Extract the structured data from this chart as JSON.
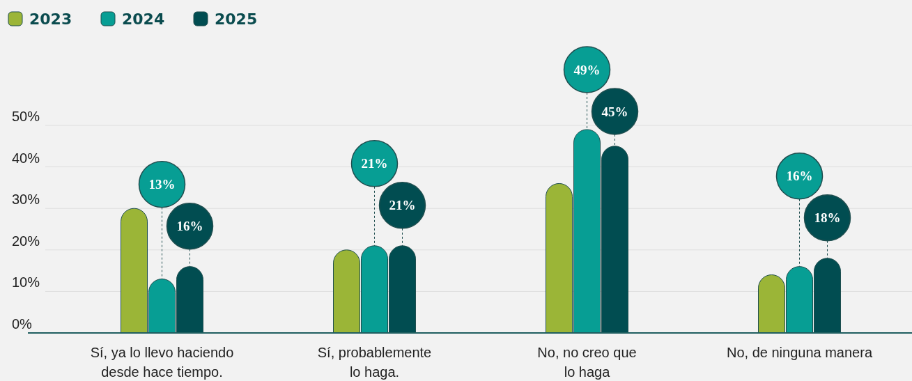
{
  "chart_data": {
    "type": "bar",
    "categories": [
      "Sí, ya lo llevo haciendo\ndesde hace tiempo.",
      "Sí, probablemente\nlo haga.",
      "No, no creo que\nlo haga",
      "No, de ninguna manera"
    ],
    "series": [
      {
        "name": "2023",
        "color": "#9bb537",
        "values": [
          30,
          20,
          36,
          14
        ]
      },
      {
        "name": "2024",
        "color": "#079e94",
        "values": [
          13,
          21,
          49,
          16
        ],
        "value_labels": [
          "13%",
          "21%",
          "49%",
          "16%"
        ]
      },
      {
        "name": "2025",
        "color": "#014d51",
        "values": [
          16,
          21,
          45,
          18
        ],
        "value_labels": [
          "16%",
          "21%",
          "45%",
          "18%"
        ]
      }
    ],
    "ylim": [
      0,
      50
    ],
    "yticks": [
      {
        "value": 0,
        "label": "0%"
      },
      {
        "value": 10,
        "label": "10%"
      },
      {
        "value": 20,
        "label": "20%"
      },
      {
        "value": 30,
        "label": "30%"
      },
      {
        "value": 40,
        "label": "40%"
      },
      {
        "value": 50,
        "label": "50%"
      }
    ],
    "grid": "y",
    "legend": "top left"
  }
}
